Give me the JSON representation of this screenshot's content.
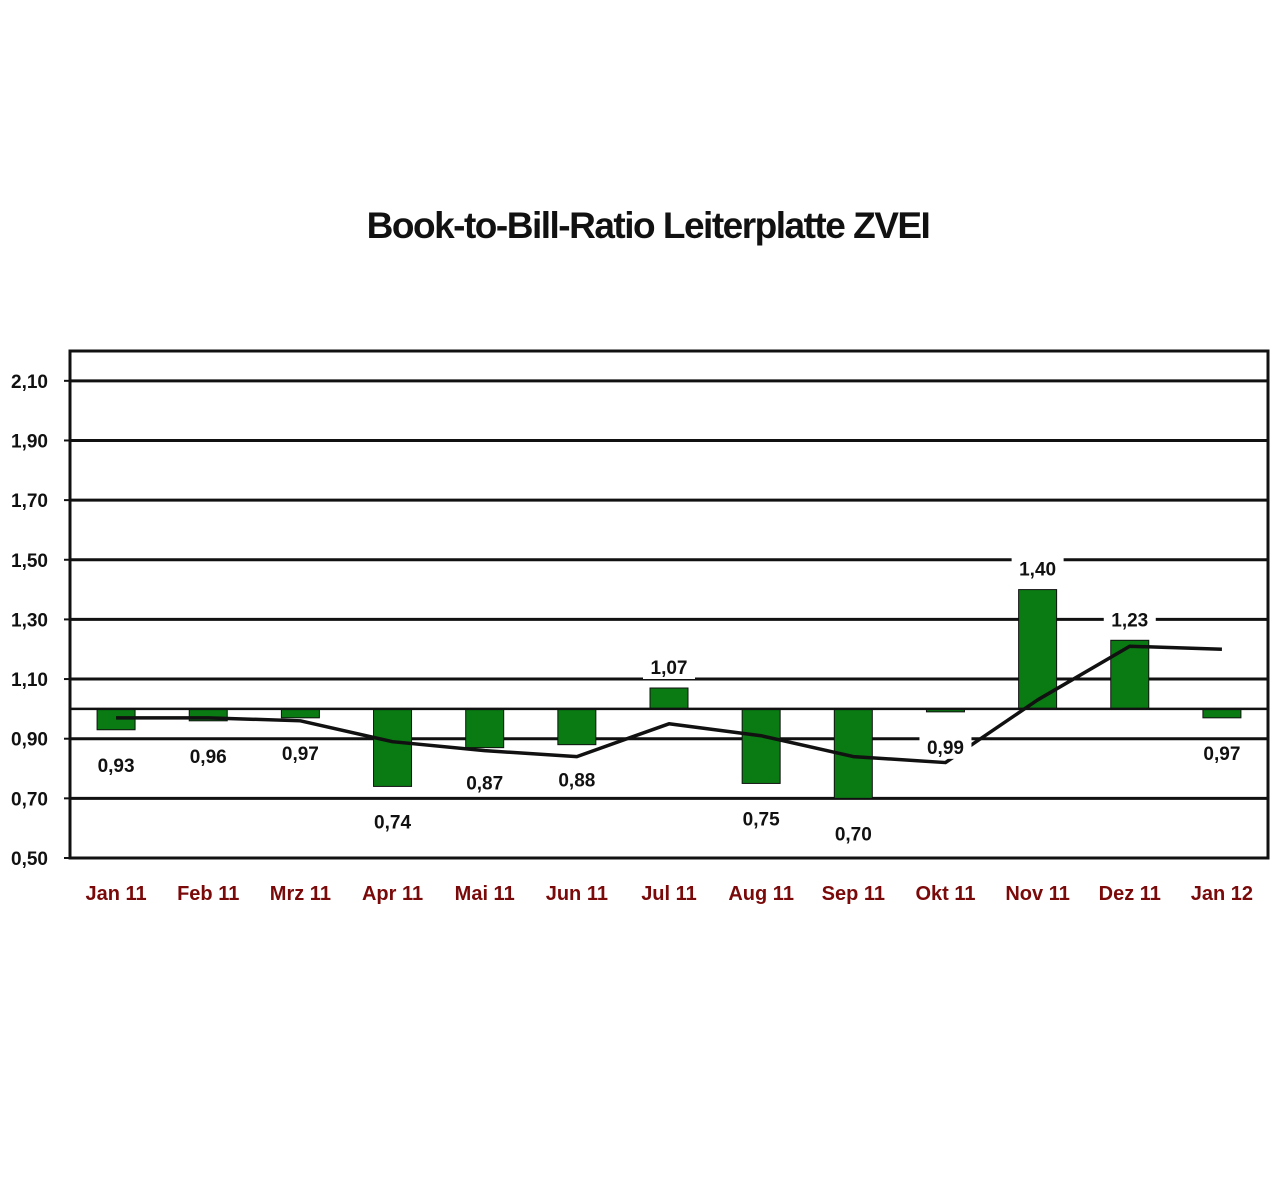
{
  "chart_data": {
    "type": "bar",
    "title": "Book-to-Bill-Ratio Leiterplatte ZVEI",
    "categories": [
      "Jan 11",
      "Feb 11",
      "Mrz 11",
      "Apr 11",
      "Mai 11",
      "Jun 11",
      "Jul 11",
      "Aug 11",
      "Sep 11",
      "Okt 11",
      "Nov 11",
      "Dez 11",
      "Jan 12"
    ],
    "series": [
      {
        "values": [
          0.93,
          0.96,
          0.97,
          0.74,
          0.87,
          0.88,
          1.07,
          0.75,
          0.7,
          0.99,
          1.4,
          1.23,
          0.97
        ]
      }
    ],
    "value_labels": [
      "0,93",
      "0,96",
      "0,97",
      "0,74",
      "0,87",
      "0,88",
      "1,07",
      "0,75",
      "0,70",
      "0,99",
      "1,40",
      "1,23",
      "0,97"
    ],
    "trend_line": [
      0.97,
      0.97,
      0.96,
      0.89,
      0.86,
      0.84,
      0.95,
      0.91,
      0.84,
      0.82,
      1.03,
      1.21,
      1.2
    ],
    "baseline": 1.0,
    "ylim": [
      0.5,
      2.2
    ],
    "yticks": [
      0.5,
      0.7,
      0.9,
      1.1,
      1.3,
      1.5,
      1.7,
      1.9,
      2.1
    ],
    "ytick_labels": [
      "0,50",
      "0,70",
      "0,90",
      "1,10",
      "1,30",
      "1,50",
      "1,70",
      "1,90",
      "2,10"
    ],
    "xlabel": "",
    "ylabel": "",
    "grid": true,
    "legend": "none",
    "colors": {
      "bar": "#0a7a12",
      "line": "#111111",
      "category_label": "#7a0a0a"
    }
  }
}
